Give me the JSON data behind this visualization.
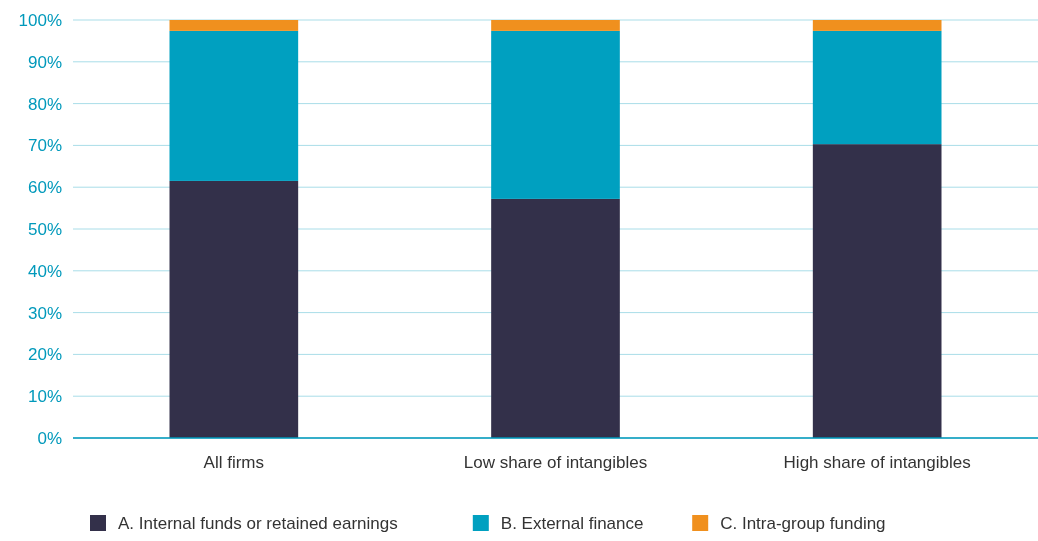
{
  "chart_data": {
    "type": "bar",
    "stacked": true,
    "categories": [
      "All firms",
      "Low share of intangibles",
      "High share of intangibles"
    ],
    "series": [
      {
        "name": "A. Internal funds or retained earnings",
        "color": "#33304a",
        "values": [
          61.5,
          57.2,
          70.3
        ]
      },
      {
        "name": "B. External finance",
        "color": "#00a0c0",
        "values": [
          35.9,
          40.2,
          27.1
        ]
      },
      {
        "name": "C. Intra-group funding",
        "color": "#f0901e",
        "values": [
          2.6,
          2.6,
          2.6
        ]
      }
    ],
    "ylim": [
      0,
      100
    ],
    "yticks": [
      {
        "value": 0,
        "label": "0%"
      },
      {
        "value": 10,
        "label": "10%"
      },
      {
        "value": 20,
        "label": "20%"
      },
      {
        "value": 30,
        "label": "30%"
      },
      {
        "value": 40,
        "label": "40%"
      },
      {
        "value": 50,
        "label": "50%"
      },
      {
        "value": 60,
        "label": "60%"
      },
      {
        "value": 70,
        "label": "70%"
      },
      {
        "value": 80,
        "label": "80%"
      },
      {
        "value": 90,
        "label": "90%"
      },
      {
        "value": 100,
        "label": "100%"
      }
    ],
    "grid": "y",
    "legend": "bottom"
  }
}
